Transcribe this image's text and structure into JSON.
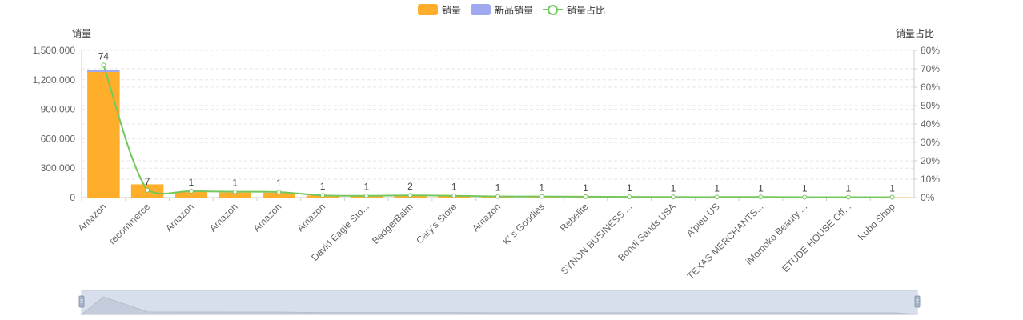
{
  "legend": {
    "items": [
      {
        "label": "销量",
        "color": "#ffae2b",
        "kind": "bar"
      },
      {
        "label": "新品销量",
        "color": "#a0a8f0",
        "kind": "bar"
      },
      {
        "label": "销量占比",
        "color": "#73c75c",
        "kind": "line"
      }
    ]
  },
  "chart_data": {
    "type": "bar",
    "title": "",
    "categories": [
      "Amazon",
      "recommerce",
      "Amazon",
      "Amazon",
      "Amazon",
      "Amazon",
      "David Eagle Sto...",
      "BadgerBalm",
      "Cary's Store",
      "Amazon",
      "K’ s Goodies",
      "Rebelite",
      "SYNON BUSINESS ...",
      "Bondi Sands USA",
      "A'pieu US",
      "TEXAS MERCHANTS...",
      "iMomoko Beauty ...",
      "ETUDE HOUSE Off...",
      "Kubo Shop"
    ],
    "series": [
      {
        "name": "销量",
        "type": "bar",
        "axis": "left",
        "color": "#ffae2b",
        "values": [
          1280000,
          135000,
          58000,
          52000,
          50000,
          22000,
          12000,
          20000,
          16000,
          9000,
          8000,
          8000,
          6000,
          5000,
          4000,
          4000,
          3000,
          3000,
          3000
        ]
      },
      {
        "name": "新品销量",
        "type": "bar",
        "axis": "left",
        "color": "#a0a8f0",
        "values": [
          20000,
          0,
          0,
          0,
          0,
          0,
          8000,
          0,
          0,
          0,
          0,
          0,
          0,
          0,
          0,
          0,
          0,
          0,
          0
        ]
      },
      {
        "name": "销量占比",
        "type": "line",
        "axis": "right",
        "color": "#73c75c",
        "values": [
          72,
          4,
          3.5,
          3.2,
          3.0,
          1.2,
          1.0,
          1.2,
          1.0,
          0.6,
          0.6,
          0.5,
          0.4,
          0.3,
          0.3,
          0.3,
          0.2,
          0.2,
          0.2
        ]
      }
    ],
    "data_labels": [
      "74",
      "7",
      "1",
      "1",
      "1",
      "1",
      "1",
      "2",
      "1",
      "1",
      "1",
      "1",
      "1",
      "1",
      "1",
      "1",
      "1",
      "1",
      "1"
    ],
    "y_left": {
      "label": "销量",
      "ylim": [
        0,
        1500000
      ],
      "ticks": [
        0,
        300000,
        600000,
        900000,
        1200000,
        1500000
      ],
      "tick_labels": [
        "0",
        "300,000",
        "600,000",
        "900,000",
        "1,200,000",
        "1,500,000"
      ]
    },
    "y_right": {
      "label": "销量占比",
      "ylim": [
        0,
        80
      ],
      "ticks": [
        0,
        10,
        20,
        30,
        40,
        50,
        60,
        70,
        80
      ],
      "tick_labels": [
        "0%",
        "10%",
        "20%",
        "30%",
        "40%",
        "50%",
        "60%",
        "70%",
        "80%"
      ]
    },
    "grid": true,
    "legend_position": "top-center",
    "zoom_slider": {
      "start": 0,
      "end": 100
    }
  }
}
